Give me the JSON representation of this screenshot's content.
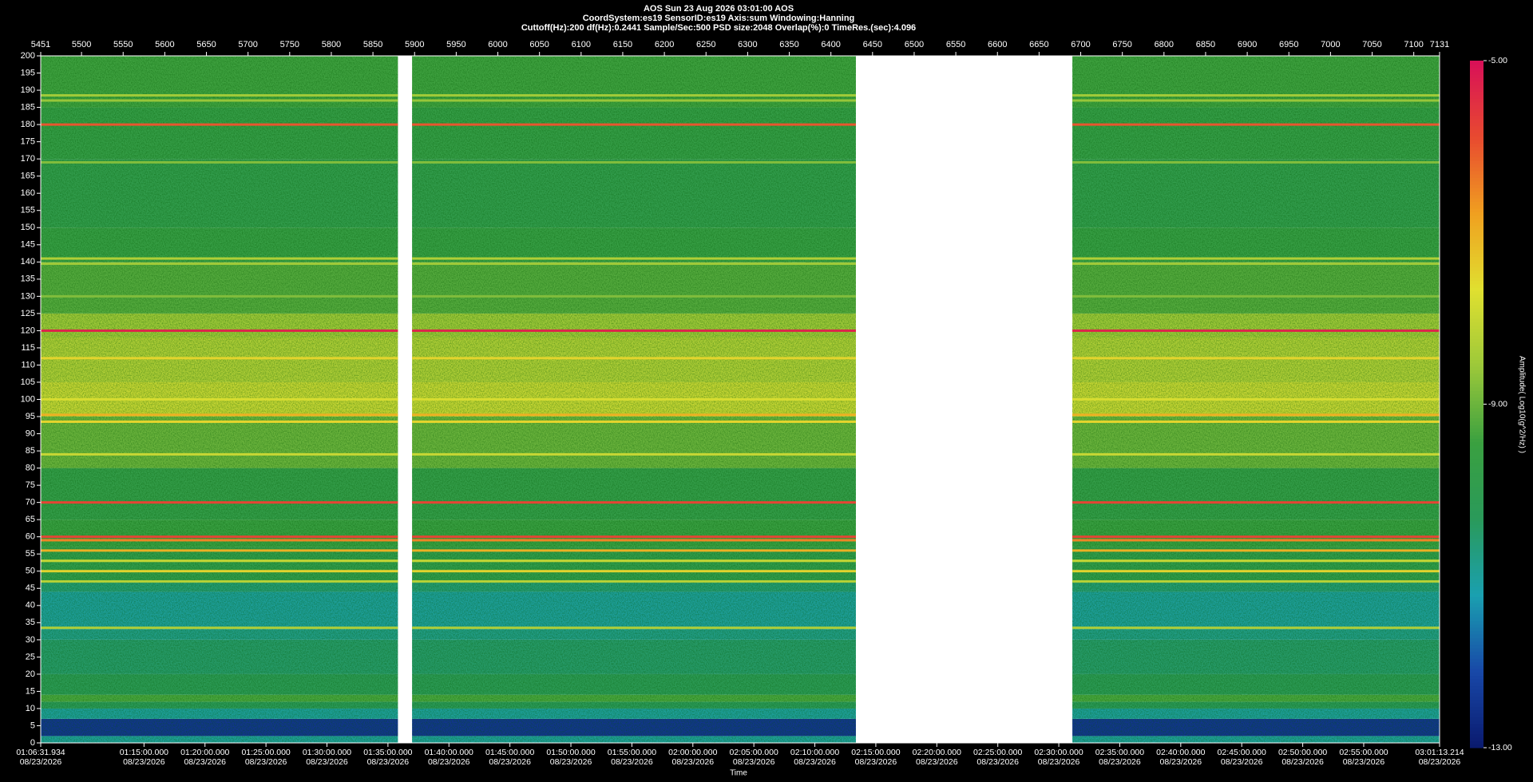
{
  "chart_data": {
    "type": "spectrogram",
    "title": "AOS  Sun 23 Aug 2026 03:01:00  AOS",
    "subtitle": "CoordSystem:es19   SensorID:es19    Axis:sum    Windowing:Hanning",
    "settings_line": "Cuttoff(Hz):200      df(Hz):0.2441      Sample/Sec:500      PSD size:2048      Overlap(%):0      TimeRes.(sec):4.096",
    "x_label": "Time",
    "colorbar_label": "Amplitude( Log10(g^2/Hz) )",
    "xlim": [
      5451,
      7131
    ],
    "xticks": [
      5451,
      5500,
      5550,
      5600,
      5650,
      5700,
      5750,
      5800,
      5850,
      5900,
      5950,
      6000,
      6050,
      6100,
      6150,
      6200,
      6250,
      6300,
      6350,
      6400,
      6450,
      6500,
      6550,
      6600,
      6650,
      6700,
      6750,
      6800,
      6850,
      6900,
      6950,
      7000,
      7050,
      7100,
      7131
    ],
    "x2lim": [
      3991.934,
      10873.214
    ],
    "x2ticks": [
      {
        "value": 3991.934,
        "label": "01:06:31.934",
        "date": "08/23/2026"
      },
      {
        "value": 4500,
        "label": "01:15:00.000",
        "date": "08/23/2026"
      },
      {
        "value": 4800,
        "label": "01:20:00.000",
        "date": "08/23/2026"
      },
      {
        "value": 5100,
        "label": "01:25:00.000",
        "date": "08/23/2026"
      },
      {
        "value": 5400,
        "label": "01:30:00.000",
        "date": "08/23/2026"
      },
      {
        "value": 5700,
        "label": "01:35:00.000",
        "date": "08/23/2026"
      },
      {
        "value": 6000,
        "label": "01:40:00.000",
        "date": "08/23/2026"
      },
      {
        "value": 6300,
        "label": "01:45:00.000",
        "date": "08/23/2026"
      },
      {
        "value": 6600,
        "label": "01:50:00.000",
        "date": "08/23/2026"
      },
      {
        "value": 6900,
        "label": "01:55:00.000",
        "date": "08/23/2026"
      },
      {
        "value": 7200,
        "label": "02:00:00.000",
        "date": "08/23/2026"
      },
      {
        "value": 7500,
        "label": "02:05:00.000",
        "date": "08/23/2026"
      },
      {
        "value": 7800,
        "label": "02:10:00.000",
        "date": "08/23/2026"
      },
      {
        "value": 8100,
        "label": "02:15:00.000",
        "date": "08/23/2026"
      },
      {
        "value": 8400,
        "label": "02:20:00.000",
        "date": "08/23/2026"
      },
      {
        "value": 8700,
        "label": "02:25:00.000",
        "date": "08/23/2026"
      },
      {
        "value": 9000,
        "label": "02:30:00.000",
        "date": "08/23/2026"
      },
      {
        "value": 9300,
        "label": "02:35:00.000",
        "date": "08/23/2026"
      },
      {
        "value": 9600,
        "label": "02:40:00.000",
        "date": "08/23/2026"
      },
      {
        "value": 9900,
        "label": "02:45:00.000",
        "date": "08/23/2026"
      },
      {
        "value": 10200,
        "label": "02:50:00.000",
        "date": "08/23/2026"
      },
      {
        "value": 10500,
        "label": "02:55:00.000",
        "date": "08/23/2026"
      },
      {
        "value": 10873.214,
        "label": "03:01:13.214",
        "date": "08/23/2026"
      }
    ],
    "ylim": [
      0,
      200
    ],
    "yticks": [
      0,
      5,
      10,
      15,
      20,
      25,
      30,
      35,
      40,
      45,
      50,
      55,
      60,
      65,
      70,
      75,
      80,
      85,
      90,
      95,
      100,
      105,
      110,
      115,
      120,
      125,
      130,
      135,
      140,
      145,
      150,
      155,
      160,
      165,
      170,
      175,
      180,
      185,
      190,
      195,
      200
    ],
    "segments": [
      [
        5451,
        5880
      ],
      [
        5897,
        6430
      ],
      [
        6690,
        7131
      ]
    ],
    "band_edges": [
      0,
      2,
      7,
      10,
      12,
      14,
      20,
      30,
      33,
      44,
      47,
      57,
      65,
      80,
      95,
      105,
      118,
      125,
      140,
      150,
      170,
      185,
      200
    ],
    "band_amplitude": [
      -11,
      -12.5,
      -11,
      -10.3,
      -9.3,
      -10.2,
      -10.5,
      -10.8,
      -11,
      -10.6,
      -9.9,
      -9.5,
      -9.8,
      -9,
      -8,
      -8.3,
      -8.5,
      -9.2,
      -9.6,
      -9.9,
      -9.7,
      -9.4
    ],
    "line_frequencies": [
      120,
      180,
      70,
      60,
      59,
      56,
      53,
      50,
      47,
      33.5,
      141,
      139.5,
      188.5,
      187,
      169,
      130,
      112,
      100,
      95.5,
      93.5,
      84
    ],
    "line_amplitudes": [
      -5.3,
      -6,
      -5.8,
      -5.8,
      -6.5,
      -7,
      -8,
      -7.5,
      -8.2,
      -8.3,
      -8.3,
      -8.5,
      -8.5,
      -8.6,
      -8.8,
      -8.8,
      -7.5,
      -7.8,
      -7,
      -7.5,
      -8
    ],
    "clim": [
      -13,
      -5
    ],
    "cticks": [
      {
        "value": -13,
        "label": "-13.00"
      },
      {
        "value": -9,
        "label": "-9.00"
      },
      {
        "value": -5,
        "label": "-5.00"
      }
    ],
    "colorscale": [
      "#0a1a6e",
      "#1848a8",
      "#1aa0b0",
      "#2a9a5a",
      "#3aa040",
      "#9cc83a",
      "#e0e030",
      "#f0a020",
      "#e84a30",
      "#d81058"
    ]
  }
}
